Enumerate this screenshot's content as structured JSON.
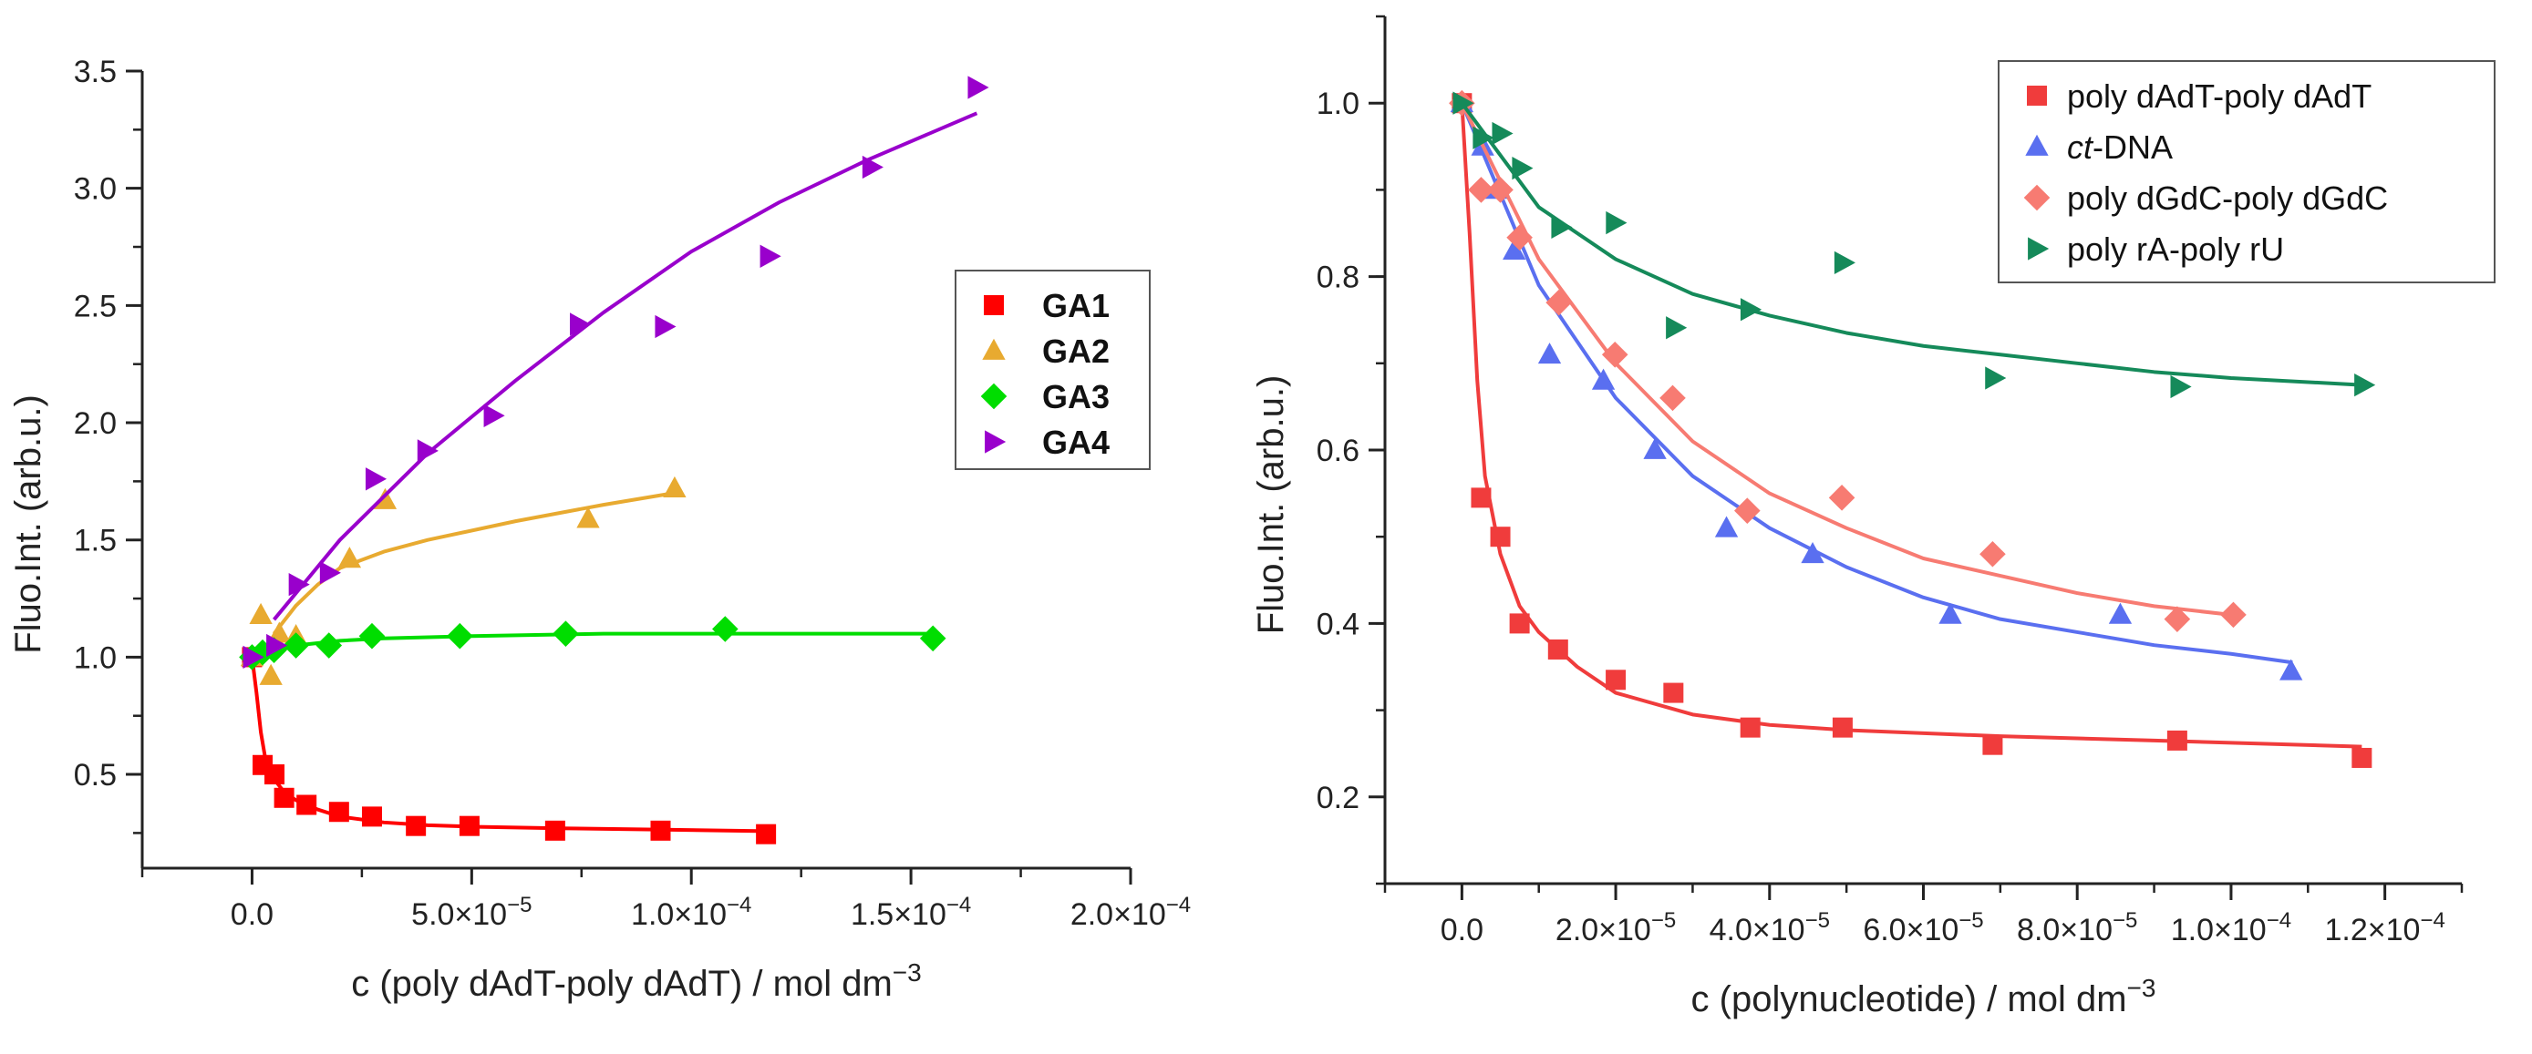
{
  "chart_data": [
    {
      "type": "scatter",
      "id": "left",
      "xlabel": "c (poly dAdT-poly dAdT) / mol dm",
      "xlabel_sup": "−3",
      "ylabel": "Fluo.Int. (arb.u.)",
      "xlim": [
        -2.5e-05,
        0.0002
      ],
      "ylim": [
        0.1,
        3.5
      ],
      "grid": false,
      "legend_position": "right-middle",
      "legend_bold": true,
      "x_ticks": [
        {
          "value": 0,
          "m": "0.0",
          "e": ""
        },
        {
          "value": 5e-05,
          "m": "5.0×10",
          "e": "−5"
        },
        {
          "value": 0.0001,
          "m": "1.0×10",
          "e": "−4"
        },
        {
          "value": 0.00015,
          "m": "1.5×10",
          "e": "−4"
        },
        {
          "value": 0.0002,
          "m": "2.0×10",
          "e": "−4"
        }
      ],
      "x_minor_step": 2.5e-05,
      "y_ticks": [
        {
          "value": 0.5,
          "m": "0.5"
        },
        {
          "value": 1.0,
          "m": "1.0"
        },
        {
          "value": 1.5,
          "m": "1.5"
        },
        {
          "value": 2.0,
          "m": "2.0"
        },
        {
          "value": 2.5,
          "m": "2.5"
        },
        {
          "value": 3.0,
          "m": "3.0"
        },
        {
          "value": 3.5,
          "m": "3.5"
        }
      ],
      "y_minor_step": 0.25,
      "series": [
        {
          "name": "GA1",
          "marker": "square",
          "color": "#ff0000",
          "x": [
            0,
            2.4e-06,
            5.1e-06,
            7.3e-06,
            1.24e-05,
            1.98e-05,
            2.73e-05,
            3.73e-05,
            4.95e-05,
            6.9e-05,
            9.3e-05,
            0.000117
          ],
          "y": [
            1.0,
            0.54,
            0.5,
            0.4,
            0.37,
            0.34,
            0.32,
            0.28,
            0.28,
            0.26,
            0.26,
            0.245
          ],
          "fit_x": [
            0,
            1e-06,
            2e-06,
            3e-06,
            5e-06,
            7.5e-06,
            1e-05,
            1.5e-05,
            2e-05,
            3e-05,
            4e-05,
            5e-05,
            7e-05,
            9e-05,
            0.000117
          ],
          "fit_y": [
            1.0,
            0.85,
            0.68,
            0.57,
            0.48,
            0.42,
            0.39,
            0.35,
            0.32,
            0.295,
            0.283,
            0.277,
            0.27,
            0.265,
            0.258
          ]
        },
        {
          "name": "GA2",
          "marker": "triangle-up",
          "color": "#e8aa30",
          "x": [
            0,
            2e-06,
            4.3e-06,
            6.2e-06,
            1e-05,
            2.22e-05,
            3.03e-05,
            7.65e-05,
            9.62e-05
          ],
          "y": [
            1.0,
            1.18,
            0.92,
            1.1,
            1.09,
            1.42,
            1.67,
            1.59,
            1.72
          ],
          "fit_x": [
            5e-06,
            1e-05,
            1.5e-05,
            2e-05,
            3e-05,
            4e-05,
            6e-05,
            8e-05,
            9.6e-05
          ],
          "fit_y": [
            1.1,
            1.22,
            1.31,
            1.38,
            1.45,
            1.5,
            1.58,
            1.65,
            1.7
          ]
        },
        {
          "name": "GA3",
          "marker": "diamond",
          "color": "#00dd00",
          "x": [
            0,
            2.4e-06,
            5e-06,
            1e-05,
            1.75e-05,
            2.73e-05,
            4.73e-05,
            7.14e-05,
            0.0001077,
            0.000155
          ],
          "y": [
            1.0,
            1.02,
            1.03,
            1.05,
            1.05,
            1.09,
            1.09,
            1.1,
            1.12,
            1.08
          ],
          "fit_x": [
            0,
            1e-05,
            2e-05,
            3e-05,
            5e-05,
            8e-05,
            0.00011,
            0.000155
          ],
          "fit_y": [
            1.0,
            1.05,
            1.07,
            1.08,
            1.09,
            1.1,
            1.1,
            1.1
          ]
        },
        {
          "name": "GA4",
          "marker": "triangle-right",
          "color": "#9900cc",
          "x": [
            0,
            5.3e-06,
            1.04e-05,
            1.75e-05,
            2.79e-05,
            3.97e-05,
            5.48e-05,
            7.44e-05,
            9.38e-05,
            0.0001177,
            0.000141,
            0.000165
          ],
          "y": [
            1.0,
            1.05,
            1.31,
            1.36,
            1.76,
            1.88,
            2.03,
            2.42,
            2.41,
            2.71,
            3.09,
            3.43
          ],
          "fit_x": [
            5e-06,
            2e-05,
            4e-05,
            6e-05,
            8e-05,
            0.0001,
            0.00012,
            0.00014,
            0.000165
          ],
          "fit_y": [
            1.16,
            1.5,
            1.87,
            2.18,
            2.47,
            2.73,
            2.94,
            3.12,
            3.32
          ]
        }
      ]
    },
    {
      "type": "scatter",
      "id": "right",
      "xlabel": "c (polynucleotide) / mol dm",
      "xlabel_sup": "−3",
      "ylabel": "Fluo.Int. (arb.u.)",
      "xlim": [
        -1e-05,
        0.00013
      ],
      "ylin": null,
      "ylim": [
        0.1,
        1.1
      ],
      "grid": false,
      "legend_position": "top-right",
      "legend_bold": false,
      "x_ticks": [
        {
          "value": 0,
          "m": "0.0",
          "e": ""
        },
        {
          "value": 2e-05,
          "m": "2.0×10",
          "e": "−5"
        },
        {
          "value": 4e-05,
          "m": "4.0×10",
          "e": "−5"
        },
        {
          "value": 6e-05,
          "m": "6.0×10",
          "e": "−5"
        },
        {
          "value": 8e-05,
          "m": "8.0×10",
          "e": "−5"
        },
        {
          "value": 0.0001,
          "m": "1.0×10",
          "e": "−4"
        },
        {
          "value": 0.00012,
          "m": "1.2×10",
          "e": "−4"
        }
      ],
      "x_minor_step": 1e-05,
      "y_ticks": [
        {
          "value": 0.2,
          "m": "0.2"
        },
        {
          "value": 0.4,
          "m": "0.4"
        },
        {
          "value": 0.6,
          "m": "0.6"
        },
        {
          "value": 0.8,
          "m": "0.8"
        },
        {
          "value": 1.0,
          "m": "1.0"
        }
      ],
      "y_minor_step": 0.1,
      "series": [
        {
          "name": "poly dAdT-poly dAdT",
          "marker": "square",
          "color": "#f03c3c",
          "x": [
            0,
            2.5e-06,
            5e-06,
            7.5e-06,
            1.25e-05,
            2e-05,
            2.75e-05,
            3.75e-05,
            4.95e-05,
            6.9e-05,
            9.3e-05,
            0.000117
          ],
          "y": [
            1.0,
            0.545,
            0.5,
            0.4,
            0.37,
            0.335,
            0.32,
            0.28,
            0.28,
            0.26,
            0.265,
            0.245
          ],
          "fit_x": [
            0,
            1e-06,
            2e-06,
            3e-06,
            5e-06,
            7.5e-06,
            1e-05,
            1.5e-05,
            2e-05,
            3e-05,
            4e-05,
            5e-05,
            7e-05,
            9e-05,
            0.000117
          ],
          "fit_y": [
            1.0,
            0.85,
            0.68,
            0.57,
            0.48,
            0.42,
            0.39,
            0.35,
            0.32,
            0.295,
            0.283,
            0.277,
            0.27,
            0.265,
            0.258
          ]
        },
        {
          "name": "ct-DNA",
          "italic_prefix": "ct",
          "marker": "triangle-up",
          "color": "#5a6ff0",
          "x": [
            0,
            2.7e-06,
            4.5e-06,
            6.8e-06,
            1.14e-05,
            1.84e-05,
            2.51e-05,
            3.44e-05,
            4.56e-05,
            6.35e-05,
            8.56e-05,
            0.0001078
          ],
          "y": [
            1.0,
            0.95,
            0.9,
            0.83,
            0.71,
            0.68,
            0.6,
            0.51,
            0.48,
            0.41,
            0.41,
            0.345
          ],
          "fit_x": [
            0,
            1e-05,
            2e-05,
            3e-05,
            4e-05,
            5e-05,
            6e-05,
            7e-05,
            8e-05,
            9e-05,
            0.0001,
            0.000108
          ],
          "fit_y": [
            1.0,
            0.79,
            0.66,
            0.57,
            0.51,
            0.465,
            0.43,
            0.405,
            0.39,
            0.375,
            0.365,
            0.355
          ]
        },
        {
          "name": "poly dGdC-poly dGdC",
          "marker": "diamond",
          "color": "#f77b72",
          "x": [
            0,
            2.5e-06,
            5e-06,
            7.5e-06,
            1.26e-05,
            1.99e-05,
            2.74e-05,
            3.71e-05,
            4.94e-05,
            6.9e-05,
            9.3e-05,
            0.0001003
          ],
          "y": [
            1.0,
            0.9,
            0.9,
            0.845,
            0.77,
            0.71,
            0.66,
            0.53,
            0.545,
            0.48,
            0.405,
            0.41
          ],
          "fit_x": [
            0,
            1e-05,
            2e-05,
            3e-05,
            4e-05,
            5e-05,
            6e-05,
            7e-05,
            8e-05,
            9e-05,
            0.0001
          ],
          "fit_y": [
            1.0,
            0.82,
            0.7,
            0.61,
            0.55,
            0.51,
            0.475,
            0.455,
            0.435,
            0.42,
            0.41
          ]
        },
        {
          "name": "poly rA-poly rU",
          "marker": "triangle-right",
          "color": "#158a5a",
          "x": [
            0,
            2.6e-06,
            5.1e-06,
            7.7e-06,
            1.28e-05,
            1.99e-05,
            2.77e-05,
            3.74e-05,
            4.96e-05,
            6.92e-05,
            9.33e-05,
            0.0001172
          ],
          "y": [
            1.0,
            0.96,
            0.965,
            0.925,
            0.857,
            0.862,
            0.741,
            0.762,
            0.816,
            0.683,
            0.673,
            0.675
          ],
          "fit_x": [
            0,
            1e-05,
            2e-05,
            3e-05,
            4e-05,
            5e-05,
            6e-05,
            7e-05,
            8e-05,
            9e-05,
            0.0001,
            0.000117
          ],
          "fit_y": [
            1.0,
            0.88,
            0.82,
            0.78,
            0.755,
            0.735,
            0.72,
            0.71,
            0.7,
            0.69,
            0.683,
            0.675
          ]
        }
      ]
    }
  ]
}
